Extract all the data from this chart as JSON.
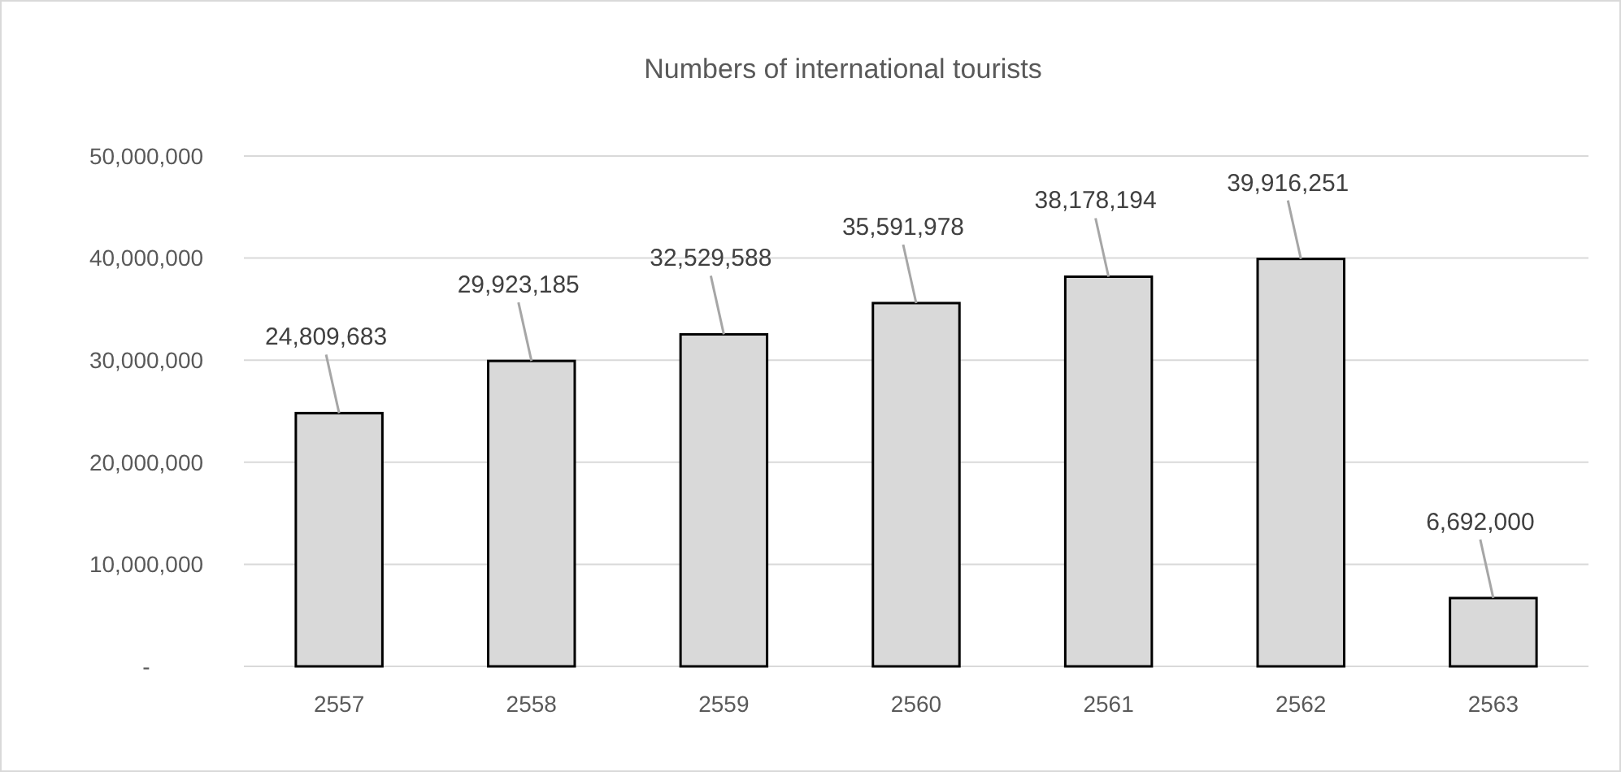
{
  "chart_data": {
    "type": "bar",
    "title": "Numbers of international tourists",
    "categories": [
      "2557",
      "2558",
      "2559",
      "2560",
      "2561",
      "2562",
      "2563"
    ],
    "values": [
      24809683,
      29923185,
      32529588,
      35591978,
      38178194,
      39916251,
      6692000
    ],
    "color": "#d9d9d9",
    "ylim": [
      0,
      50000000
    ],
    "yticks": [
      {
        "value": 0,
        "label": "-"
      },
      {
        "value": 10000000,
        "label": "10,000,000"
      },
      {
        "value": 20000000,
        "label": "20,000,000"
      },
      {
        "value": 30000000,
        "label": "30,000,000"
      },
      {
        "value": 40000000,
        "label": "40,000,000"
      },
      {
        "value": 50000000,
        "label": "50,000,000"
      }
    ],
    "value_labels": [
      "24,809,683",
      "29,923,185",
      "32,529,588",
      "35,591,978",
      "38,178,194",
      "39,916,251",
      "6,692,000"
    ],
    "grid": true
  }
}
